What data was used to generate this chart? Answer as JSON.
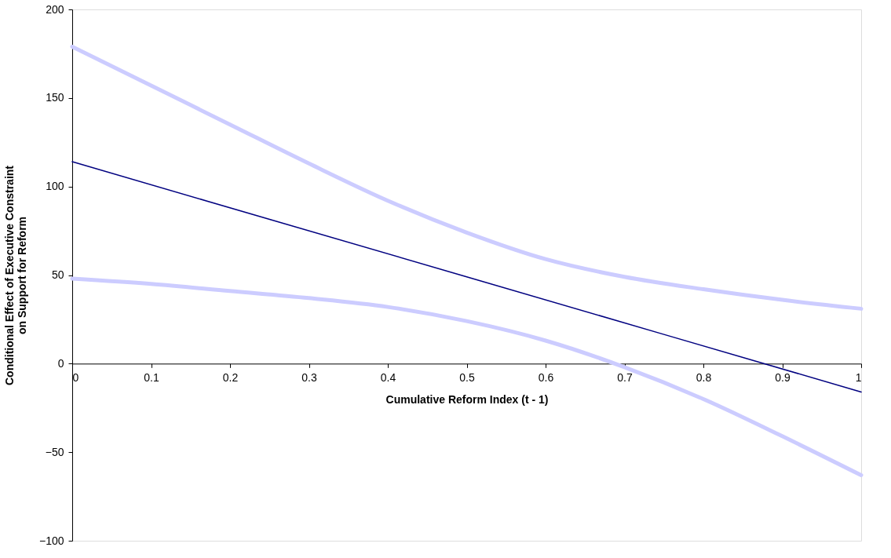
{
  "chart_data": {
    "type": "line",
    "xlabel": "Cumulative Reform Index (t - 1)",
    "ylabel": "Conditional Effect of Executive Constraint\non Support for Reform",
    "xlim": [
      0,
      1
    ],
    "xticks": [
      0,
      0.1,
      0.2,
      0.3,
      0.4,
      0.5,
      0.6,
      0.7,
      0.8,
      0.9,
      1
    ],
    "ylim": [
      -100,
      200
    ],
    "yticks": [
      -100,
      -50,
      0,
      50,
      100,
      150,
      200
    ],
    "grid": false,
    "marker": "none",
    "line_style": "solid",
    "series": [
      {
        "color": "#000080",
        "x": [
          0,
          0.5,
          1
        ],
        "values": [
          114,
          49,
          -16
        ]
      },
      {
        "color": "#ccccff",
        "x": [
          0,
          0.1,
          0.2,
          0.3,
          0.4,
          0.5,
          0.6,
          0.7,
          0.8,
          0.9,
          1
        ],
        "values": [
          179,
          157,
          135,
          113,
          92,
          74,
          59,
          49,
          42,
          36,
          31
        ]
      },
      {
        "color": "#ccccff",
        "x": [
          0,
          0.1,
          0.2,
          0.3,
          0.4,
          0.5,
          0.6,
          0.7,
          0.8,
          0.9,
          1
        ],
        "values": [
          48,
          45,
          41,
          37,
          32,
          24,
          13,
          -2,
          -20,
          -41,
          -63
        ]
      }
    ]
  }
}
